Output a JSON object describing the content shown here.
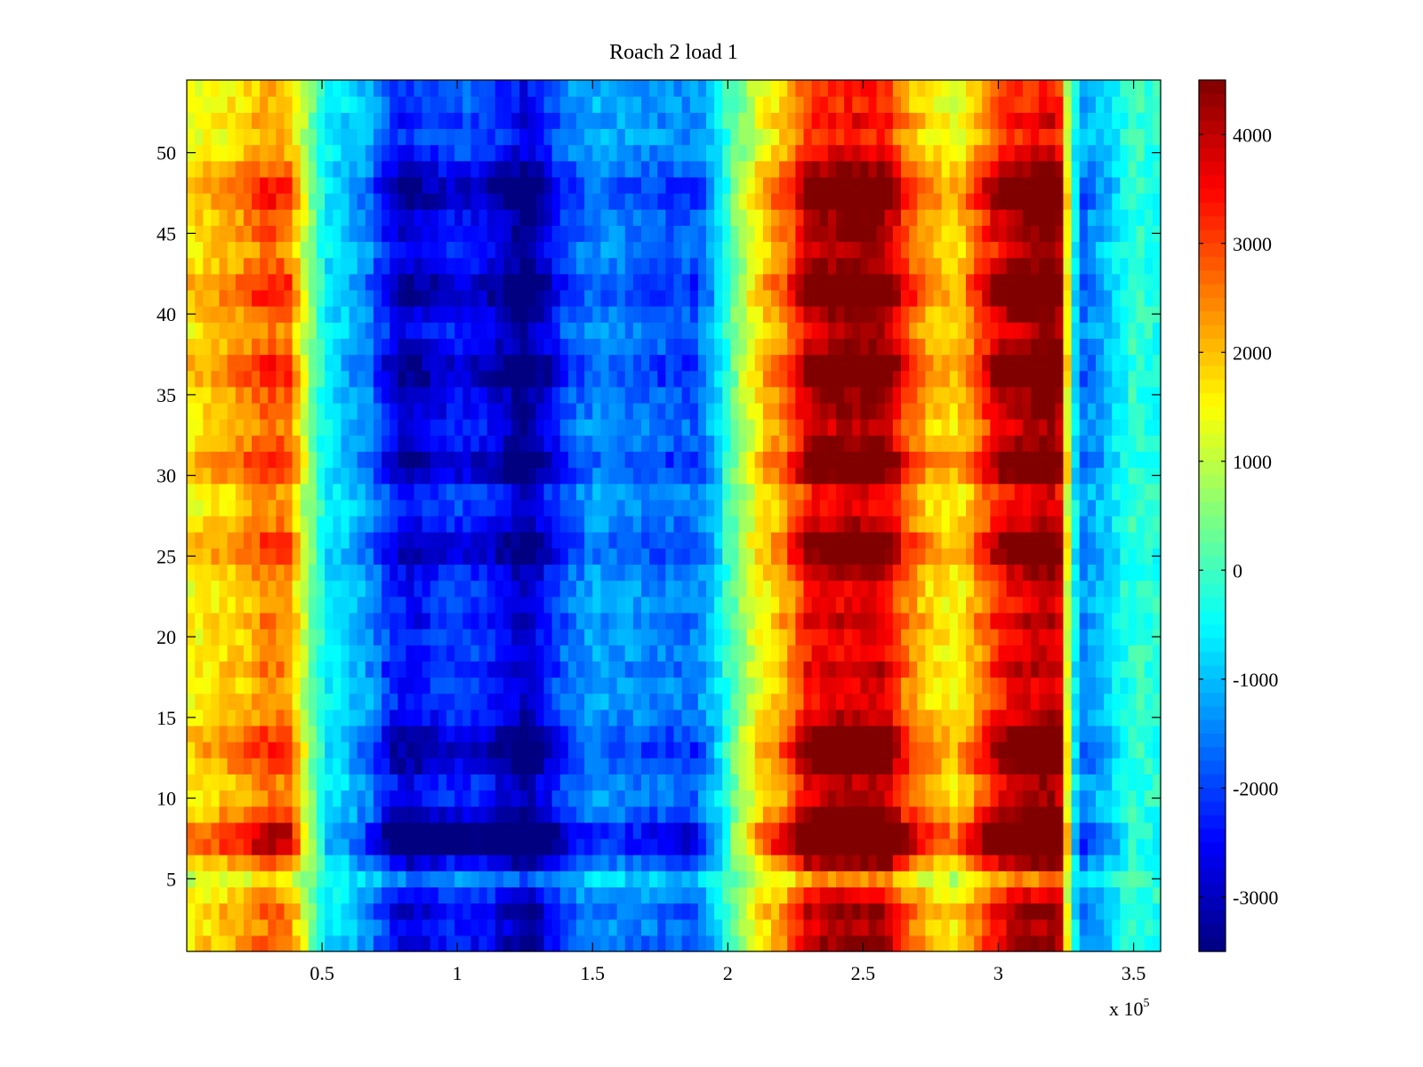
{
  "chart_data": {
    "type": "heatmap",
    "title": "Roach 2 load 1",
    "colormap": "jet",
    "x": {
      "range": [
        0,
        360000
      ],
      "ticks": [
        50000,
        100000,
        150000,
        200000,
        250000,
        300000,
        350000
      ],
      "tick_labels": [
        "0.5",
        "1",
        "1.5",
        "2",
        "2.5",
        "3",
        "3.5"
      ],
      "exponent_label": "x 10",
      "exponent_superscript": "5"
    },
    "y": {
      "range": [
        0.5,
        54.5
      ],
      "ticks": [
        5,
        10,
        15,
        20,
        25,
        30,
        35,
        40,
        45,
        50
      ],
      "tick_labels": [
        "5",
        "10",
        "15",
        "20",
        "25",
        "30",
        "35",
        "40",
        "45",
        "50"
      ]
    },
    "colorbar": {
      "range": [
        -3500,
        4500
      ],
      "ticks": [
        -3000,
        -2000,
        -1000,
        0,
        1000,
        2000,
        3000,
        4000
      ],
      "tick_labels": [
        "-3000",
        "-2000",
        "-1000",
        "0",
        "1000",
        "2000",
        "3000",
        "4000"
      ]
    },
    "column_profile": {
      "x": [
        0,
        10000,
        20000,
        30000,
        38000,
        45000,
        52000,
        60000,
        68000,
        75000,
        82000,
        90000,
        100000,
        110000,
        118000,
        125000,
        132000,
        140000,
        150000,
        160000,
        175000,
        188000,
        195000,
        203000,
        212000,
        222000,
        230000,
        245000,
        258000,
        266000,
        275000,
        285000,
        293000,
        302000,
        315000,
        322000,
        326000,
        330000,
        340000,
        350000,
        360000
      ],
      "values": [
        1500,
        1800,
        2100,
        2600,
        2400,
        600,
        -600,
        -900,
        -1400,
        -2300,
        -2700,
        -2400,
        -2200,
        -2300,
        -2800,
        -3200,
        -2600,
        -1800,
        -1300,
        -1400,
        -1600,
        -1700,
        -900,
        400,
        1600,
        2400,
        3700,
        4100,
        4000,
        2700,
        1900,
        1600,
        2600,
        3700,
        4200,
        4300,
        900,
        -1500,
        -900,
        -100,
        -300
      ]
    },
    "row_modulation": {
      "rows": [
        1,
        2,
        3,
        4,
        5,
        6,
        7,
        8,
        9,
        10,
        11,
        12,
        13,
        14,
        15,
        16,
        17,
        18,
        19,
        20,
        21,
        22,
        23,
        24,
        25,
        26,
        27,
        28,
        29,
        30,
        31,
        32,
        33,
        34,
        35,
        36,
        37,
        38,
        39,
        40,
        41,
        42,
        43,
        44,
        45,
        46,
        47,
        48,
        49,
        50,
        51,
        52,
        53,
        54
      ],
      "values": [
        1.1,
        1.0,
        1.1,
        0.9,
        0.6,
        1.1,
        1.6,
        1.6,
        1.2,
        1.0,
        1.0,
        1.2,
        1.3,
        1.2,
        1.0,
        0.9,
        0.9,
        1.0,
        0.9,
        0.9,
        1.0,
        0.9,
        0.9,
        1.0,
        1.2,
        1.2,
        1.0,
        0.9,
        0.9,
        1.2,
        1.3,
        1.1,
        1.0,
        1.1,
        1.1,
        1.3,
        1.3,
        1.1,
        1.0,
        1.1,
        1.3,
        1.3,
        1.1,
        1.0,
        1.1,
        1.1,
        1.3,
        1.3,
        1.1,
        0.9,
        0.8,
        0.9,
        0.8,
        0.8
      ]
    }
  }
}
